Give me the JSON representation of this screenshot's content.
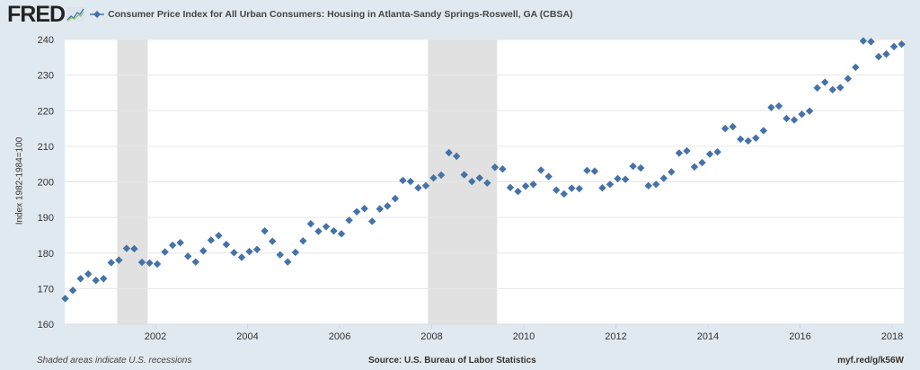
{
  "header": {
    "logo": "FRED",
    "logo_icon": "line-graph-icon",
    "legend_marker_icon": "diamond-line-icon",
    "title": "Consumer Price Index for All Urban Consumers: Housing in Atlanta-Sandy Springs-Roswell, GA (CBSA)"
  },
  "footer": {
    "recession_note": "Shaded areas indicate U.S. recessions",
    "source": "Source: U.S. Bureau of Labor Statistics",
    "link": "myf.red/g/k56W"
  },
  "colors": {
    "background": "#e1e9f0",
    "plot_bg": "#ffffff",
    "marker": "#4572a7",
    "recession": "#e1e1e1",
    "grid": "#e6e6e6"
  },
  "chart_data": {
    "type": "scatter",
    "title": "Consumer Price Index for All Urban Consumers: Housing in Atlanta-Sandy Springs-Roswell, GA (CBSA)",
    "xlabel": "",
    "ylabel": "Index 1982-1984=100",
    "xlim": [
      2000.0,
      2018.25
    ],
    "ylim": [
      160,
      240
    ],
    "grid": true,
    "legend": "top-left",
    "x_ticks": [
      2002,
      2004,
      2006,
      2008,
      2010,
      2012,
      2014,
      2016,
      2018
    ],
    "x_tick_labels": [
      "2002",
      "2004",
      "2006",
      "2008",
      "2010",
      "2012",
      "2014",
      "2016",
      "2018"
    ],
    "y_ticks": [
      160,
      170,
      180,
      190,
      200,
      210,
      220,
      230,
      240
    ],
    "y_tick_labels": [
      "160",
      "170",
      "180",
      "190",
      "200",
      "210",
      "220",
      "230",
      "240"
    ],
    "recessions": [
      [
        2001.17,
        2001.83
      ],
      [
        2007.92,
        2009.42
      ]
    ],
    "series": [
      {
        "name": "Consumer Price Index for All Urban Consumers: Housing in Atlanta-Sandy Springs-Roswell, GA (CBSA)",
        "frequency": "bimonthly",
        "start": 2000.0,
        "values": [
          167.2,
          169.5,
          172.8,
          174.1,
          172.3,
          172.8,
          177.3,
          178.0,
          181.3,
          181.2,
          177.4,
          177.2,
          176.9,
          180.3,
          182.2,
          182.9,
          179.1,
          177.5,
          180.6,
          183.6,
          184.9,
          182.4,
          180.1,
          178.8,
          180.4,
          181.0,
          186.2,
          183.3,
          179.5,
          177.5,
          180.2,
          183.4,
          188.2,
          186.1,
          187.4,
          186.2,
          185.4,
          189.2,
          191.6,
          192.5,
          188.9,
          192.4,
          193.2,
          195.3,
          200.4,
          200.1,
          198.3,
          198.9,
          201.1,
          201.9,
          208.2,
          207.2,
          202.0,
          200.1,
          201.1,
          199.7,
          204.1,
          203.6,
          198.4,
          197.3,
          198.8,
          199.3,
          203.3,
          201.5,
          197.7,
          196.6,
          198.2,
          198.1,
          203.2,
          203.0,
          198.3,
          199.3,
          200.9,
          200.7,
          204.4,
          203.9,
          198.9,
          199.3,
          201.0,
          202.8,
          208.1,
          208.7,
          204.2,
          205.4,
          207.8,
          208.4,
          215.0,
          215.5,
          212.0,
          211.5,
          212.3,
          214.4,
          220.9,
          221.3,
          217.8,
          217.4,
          219.0,
          219.9,
          226.4,
          228.0,
          225.9,
          226.5,
          229.0,
          232.2,
          239.6,
          239.4,
          235.2,
          235.9,
          238.0,
          238.7
        ]
      }
    ]
  }
}
